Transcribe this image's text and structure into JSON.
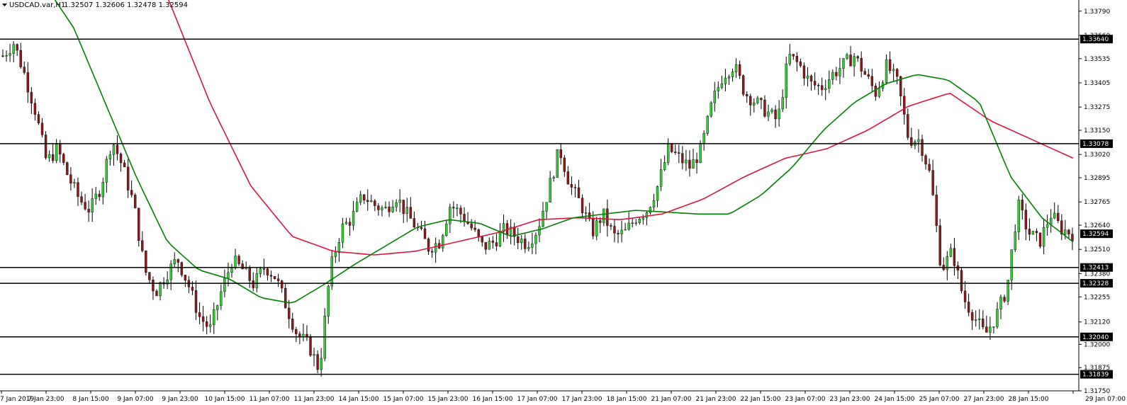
{
  "title": {
    "symbol": "USDCAD.var,H1",
    "ohlc": "1.32507 1.32606 1.32478 1.32594"
  },
  "colors": {
    "background": "#ffffff",
    "bull_candle": "#32cd32",
    "bear_candle": "#8b1a1a",
    "wick": "#000000",
    "fast_ma": "#008000",
    "slow_ma": "#dc143c",
    "level_line": "#000000",
    "label_bg": "#000000"
  },
  "chart_data": {
    "type": "candlestick",
    "price_range": [
      1.3175,
      1.3385
    ],
    "y_ticks": [
      "1.33790",
      "1.33660",
      "1.33535",
      "1.33405",
      "1.33275",
      "1.33150",
      "1.33020",
      "1.32895",
      "1.32765",
      "1.32640",
      "1.32510",
      "1.32380",
      "1.32255",
      "1.32120",
      "1.32000",
      "1.31875",
      "1.31750"
    ],
    "x_ticks": [
      "7 Jan 2019",
      "7 Jan 23:00",
      "8 Jan 15:00",
      "9 Jan 07:00",
      "9 Jan 23:00",
      "10 Jan 15:00",
      "11 Jan 07:00",
      "11 Jan 23:00",
      "14 Jan 15:00",
      "15 Jan 07:00",
      "15 Jan 23:00",
      "16 Jan 15:00",
      "17 Jan 07:00",
      "17 Jan 23:00",
      "18 Jan 15:00",
      "21 Jan 07:00",
      "21 Jan 23:00",
      "22 Jan 15:00",
      "23 Jan 07:00",
      "23 Jan 23:00",
      "24 Jan 15:00",
      "25 Jan 07:00",
      "27 Jan 23:00",
      "28 Jan 15:00",
      "29 Jan 07:00"
    ],
    "levels": [
      {
        "label": "1.33640",
        "value": 1.3364
      },
      {
        "label": "1.33078",
        "value": 1.33078
      },
      {
        "label": "1.32413",
        "value": 1.32413
      },
      {
        "label": "1.32328",
        "value": 1.32328
      },
      {
        "label": "1.32040",
        "value": 1.3204
      },
      {
        "label": "1.31839",
        "value": 1.31839
      }
    ],
    "current_price": {
      "label": "1.32594",
      "value": 1.32594
    },
    "close_path": [
      1.3355,
      1.3362,
      1.3345,
      1.3325,
      1.3298,
      1.3305,
      1.329,
      1.3278,
      1.3272,
      1.3285,
      1.331,
      1.3295,
      1.3275,
      1.324,
      1.3228,
      1.3238,
      1.3246,
      1.3232,
      1.3215,
      1.3208,
      1.3228,
      1.3245,
      1.324,
      1.3232,
      1.3242,
      1.3236,
      1.322,
      1.3205,
      1.32,
      1.3186,
      1.324,
      1.3262,
      1.3268,
      1.328,
      1.3275,
      1.3272,
      1.328,
      1.327,
      1.3262,
      1.3252,
      1.3255,
      1.3275,
      1.327,
      1.3262,
      1.3252,
      1.3255,
      1.3262,
      1.3258,
      1.3254,
      1.3262,
      1.3283,
      1.3305,
      1.3285,
      1.3275,
      1.326,
      1.327,
      1.3258,
      1.326,
      1.3268,
      1.3272,
      1.3285,
      1.3305,
      1.33,
      1.3295,
      1.3305,
      1.333,
      1.3345,
      1.335,
      1.3335,
      1.333,
      1.3325,
      1.332,
      1.3355,
      1.335,
      1.334,
      1.3338,
      1.3345,
      1.335,
      1.3355,
      1.3345,
      1.3335,
      1.335,
      1.334,
      1.331,
      1.331,
      1.329,
      1.324,
      1.325,
      1.3225,
      1.3215,
      1.3205,
      1.3215,
      1.323,
      1.3275,
      1.326,
      1.3255,
      1.327,
      1.3262,
      1.32594
    ],
    "fast_ma_path": [
      1.3395,
      1.337,
      1.333,
      1.329,
      1.3255,
      1.324,
      1.3235,
      1.3225,
      1.3222,
      1.3232,
      1.3243,
      1.3253,
      1.3263,
      1.3267,
      1.3265,
      1.3258,
      1.3262,
      1.3268,
      1.327,
      1.3272,
      1.3271,
      1.327,
      1.327,
      1.328,
      1.3295,
      1.3315,
      1.333,
      1.334,
      1.3345,
      1.3342,
      1.333,
      1.329,
      1.3268,
      1.3255
    ],
    "slow_ma_path": [
      1.343,
      1.3385,
      1.333,
      1.3285,
      1.3258,
      1.325,
      1.3248,
      1.325,
      1.3255,
      1.326,
      1.3267,
      1.3268,
      1.3267,
      1.327,
      1.3278,
      1.329,
      1.33,
      1.3305,
      1.3315,
      1.3328,
      1.3335,
      1.332,
      1.331,
      1.33
    ]
  }
}
